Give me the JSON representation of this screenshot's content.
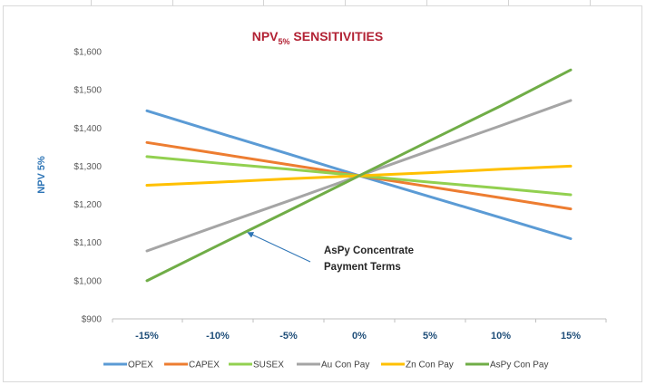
{
  "chart_data": {
    "type": "line",
    "title": "NPV",
    "title_subscript": "5%",
    "title_suffix": " SENSITIVITIES",
    "ylabel": "NPV 5%",
    "xlabel": "",
    "categories": [
      "-15%",
      "-10%",
      "-5%",
      "0%",
      "5%",
      "10%",
      "15%"
    ],
    "x": [
      -15,
      -10,
      -5,
      0,
      5,
      10,
      15
    ],
    "ylim": [
      900,
      1600
    ],
    "ytick_step": 100,
    "ytick_labels": [
      "$900",
      "$1,000",
      "$1,100",
      "$1,200",
      "$1,300",
      "$1,400",
      "$1,500",
      "$1,600"
    ],
    "grid": false,
    "legend": "bottom",
    "series": [
      {
        "name": "OPEX",
        "color": "#5b9bd5",
        "values": [
          1445,
          1388,
          1332,
          1275,
          1220,
          1165,
          1110
        ]
      },
      {
        "name": "CAPEX",
        "color": "#ed7d31",
        "values": [
          1362,
          1333,
          1304,
          1275,
          1246,
          1217,
          1188
        ]
      },
      {
        "name": "SUSEX",
        "color": "#92d050",
        "values": [
          1325,
          1308,
          1292,
          1275,
          1258,
          1242,
          1225
        ]
      },
      {
        "name": "Au Con Pay",
        "color": "#a5a5a5",
        "values": [
          1078,
          1144,
          1209,
          1275,
          1341,
          1406,
          1472
        ]
      },
      {
        "name": "Zn Con Pay",
        "color": "#ffc000",
        "values": [
          1250,
          1258,
          1267,
          1275,
          1283,
          1292,
          1300
        ]
      },
      {
        "name": "AsPy Con Pay",
        "color": "#70ad47",
        "values": [
          1000,
          1092,
          1183,
          1275,
          1367,
          1458,
          1552
        ]
      }
    ],
    "annotations": [
      {
        "line1": "AsPy Concentrate",
        "line2": "Payment Terms",
        "target_series": "AsPy Con Pay",
        "target_x": -8
      }
    ]
  }
}
